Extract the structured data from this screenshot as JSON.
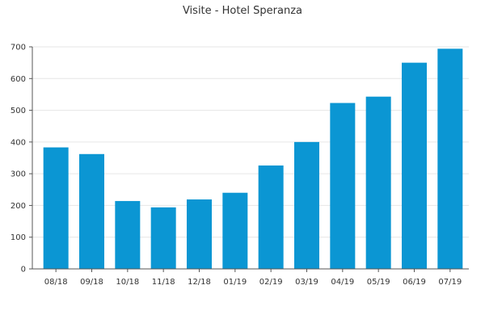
{
  "chart_data": {
    "type": "bar",
    "title": "Visite - Hotel Speranza",
    "xlabel": "",
    "ylabel": "",
    "categories": [
      "08/18",
      "09/18",
      "10/18",
      "11/18",
      "12/18",
      "01/19",
      "02/19",
      "03/19",
      "04/19",
      "05/19",
      "06/19",
      "07/19"
    ],
    "values": [
      383,
      362,
      214,
      194,
      219,
      240,
      326,
      400,
      523,
      543,
      650,
      694
    ],
    "ylim": [
      0,
      700
    ],
    "yticks": [
      "0",
      "100",
      "200",
      "300",
      "400",
      "500",
      "600",
      "700"
    ],
    "grid": true,
    "bar_color": "#0b96d3"
  }
}
